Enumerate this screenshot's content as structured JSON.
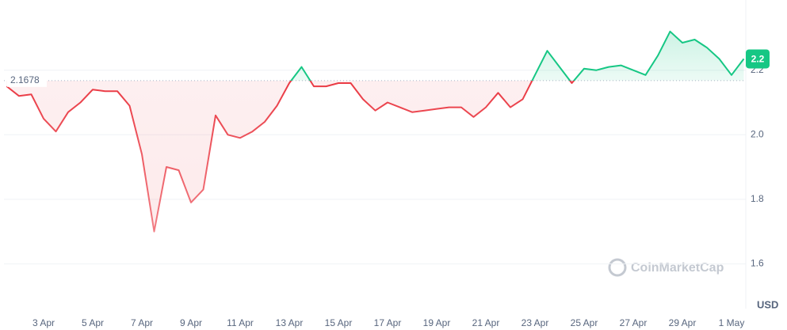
{
  "chart_data": {
    "type": "line",
    "categories": [
      null,
      null,
      null,
      "3 Apr",
      null,
      null,
      null,
      "5 Apr",
      null,
      null,
      null,
      "7 Apr",
      null,
      null,
      null,
      "9 Apr",
      null,
      null,
      null,
      "11 Apr",
      null,
      null,
      null,
      "13 Apr",
      null,
      null,
      null,
      "15 Apr",
      null,
      null,
      null,
      "17 Apr",
      null,
      null,
      null,
      "19 Apr",
      null,
      null,
      null,
      "21 Apr",
      null,
      null,
      null,
      "23 Apr",
      null,
      null,
      null,
      "25 Apr",
      null,
      null,
      null,
      "27 Apr",
      null,
      null,
      null,
      "29 Apr",
      null,
      null,
      null,
      "1 May",
      null
    ],
    "values": [
      2.15,
      2.12,
      2.125,
      2.05,
      2.01,
      2.07,
      2.1,
      2.14,
      2.135,
      2.135,
      2.09,
      1.94,
      1.7,
      1.9,
      1.89,
      1.79,
      1.83,
      2.06,
      2.0,
      1.99,
      2.01,
      2.04,
      2.09,
      2.16,
      2.21,
      2.15,
      2.15,
      2.16,
      2.16,
      2.11,
      2.075,
      2.1,
      2.085,
      2.07,
      2.075,
      2.08,
      2.085,
      2.085,
      2.055,
      2.085,
      2.13,
      2.085,
      2.11,
      2.185,
      2.26,
      2.21,
      2.16,
      2.205,
      2.2,
      2.21,
      2.215,
      2.2,
      2.185,
      2.245,
      2.32,
      2.285,
      2.295,
      2.27,
      2.235,
      2.185,
      2.235
    ],
    "baseline": 2.1678,
    "up_color": "#16c784",
    "down_color": "#ea3943",
    "ylim": [
      1.52,
      2.42
    ],
    "yticks": [
      1.6,
      1.8,
      {
        "value": 2,
        "label": "2.0"
      },
      2.2
    ],
    "grid": true,
    "current_price_label": "2.2",
    "currency": "USD",
    "watermark": "CoinMarketCap"
  }
}
